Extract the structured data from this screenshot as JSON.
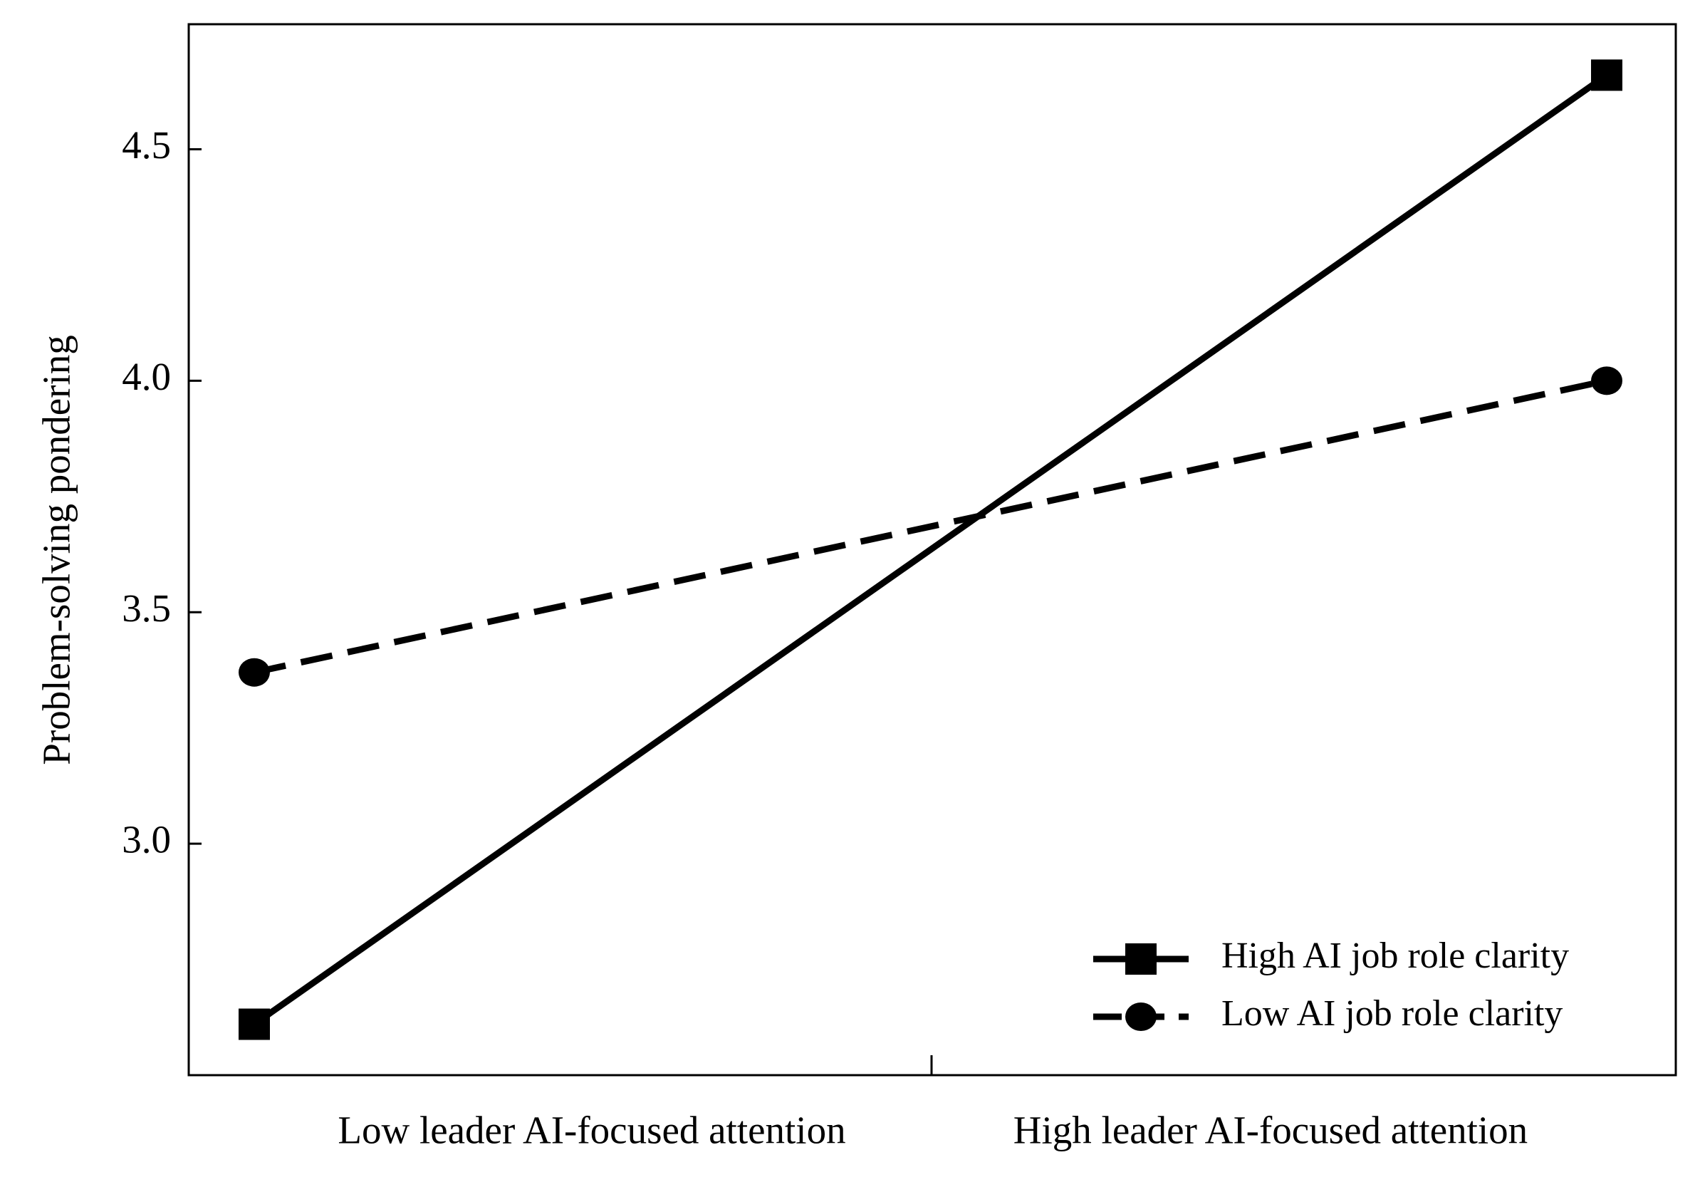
{
  "chart_data": {
    "type": "line",
    "y_label": "Problem-solving pondering",
    "categories": [
      "Low leader AI-focused attention",
      "High leader AI-focused attention"
    ],
    "series": [
      {
        "name": "High AI job role clarity",
        "color": "#000000",
        "dash": "solid",
        "marker": "square",
        "values": [
          2.61,
          4.66
        ]
      },
      {
        "name": "Low AI job role clarity",
        "color": "#000000",
        "dash": "dashed",
        "marker": "circle",
        "values": [
          3.37,
          4.0
        ]
      }
    ],
    "ylim": [
      2.5,
      4.77
    ],
    "yticks": [
      {
        "value": 3.0,
        "label": "3.0"
      },
      {
        "value": 3.5,
        "label": "3.5"
      },
      {
        "value": 4.0,
        "label": "4.0"
      },
      {
        "value": 4.5,
        "label": "4.5"
      }
    ],
    "grid": false,
    "legend": "lower right"
  }
}
